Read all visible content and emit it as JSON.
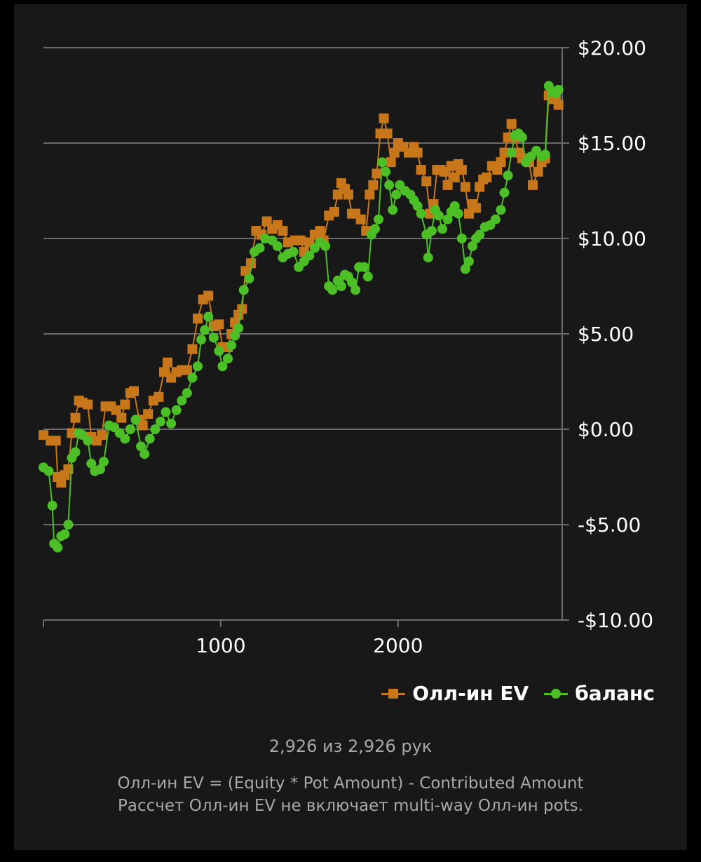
{
  "chart_data": {
    "type": "line",
    "xlim": [
      0,
      2926
    ],
    "ylim": [
      -10,
      20
    ],
    "y_ticks": [
      20,
      15,
      10,
      5,
      0,
      -5,
      -10
    ],
    "y_tick_labels": [
      "$20.00",
      "$15.00",
      "$10.00",
      "$5.00",
      "$0.00",
      "-$5.00",
      "-$10.00"
    ],
    "x_ticks": [
      0,
      1000,
      2000
    ],
    "x_tick_labels": [
      "",
      "1000",
      "2000"
    ],
    "grid": "horizontal",
    "legend_position": "bottom-right",
    "series": [
      {
        "name": "Олл-ин EV",
        "color": "#c8761a",
        "marker": "square",
        "points": [
          [
            0,
            -0.3
          ],
          [
            40,
            -0.6
          ],
          [
            70,
            -0.6
          ],
          [
            80,
            -2.5
          ],
          [
            100,
            -2.8
          ],
          [
            120,
            -2.4
          ],
          [
            140,
            -2.1
          ],
          [
            160,
            -0.2
          ],
          [
            180,
            0.6
          ],
          [
            200,
            1.5
          ],
          [
            220,
            1.4
          ],
          [
            250,
            1.3
          ],
          [
            270,
            -0.4
          ],
          [
            300,
            -0.6
          ],
          [
            330,
            -0.3
          ],
          [
            350,
            1.2
          ],
          [
            380,
            1.2
          ],
          [
            410,
            1.0
          ],
          [
            440,
            0.6
          ],
          [
            460,
            1.3
          ],
          [
            490,
            1.9
          ],
          [
            510,
            2.0
          ],
          [
            540,
            0.5
          ],
          [
            560,
            0.2
          ],
          [
            590,
            0.8
          ],
          [
            620,
            1.5
          ],
          [
            650,
            1.7
          ],
          [
            680,
            3.0
          ],
          [
            700,
            3.5
          ],
          [
            720,
            2.7
          ],
          [
            750,
            3.0
          ],
          [
            780,
            3.1
          ],
          [
            810,
            3.1
          ],
          [
            840,
            4.2
          ],
          [
            870,
            5.8
          ],
          [
            900,
            6.8
          ],
          [
            930,
            7.0
          ],
          [
            960,
            5.4
          ],
          [
            990,
            5.5
          ],
          [
            1010,
            4.3
          ],
          [
            1040,
            4.3
          ],
          [
            1060,
            5.0
          ],
          [
            1080,
            5.6
          ],
          [
            1100,
            6.0
          ],
          [
            1120,
            6.3
          ],
          [
            1140,
            8.3
          ],
          [
            1170,
            8.7
          ],
          [
            1200,
            10.4
          ],
          [
            1230,
            10.2
          ],
          [
            1260,
            10.9
          ],
          [
            1290,
            10.5
          ],
          [
            1320,
            10.7
          ],
          [
            1350,
            10.4
          ],
          [
            1380,
            9.8
          ],
          [
            1420,
            9.9
          ],
          [
            1450,
            9.9
          ],
          [
            1470,
            9.3
          ],
          [
            1500,
            9.8
          ],
          [
            1530,
            10.2
          ],
          [
            1560,
            10.4
          ],
          [
            1580,
            9.9
          ],
          [
            1610,
            11.2
          ],
          [
            1640,
            11.4
          ],
          [
            1660,
            12.3
          ],
          [
            1680,
            12.9
          ],
          [
            1700,
            12.6
          ],
          [
            1720,
            12.3
          ],
          [
            1740,
            11.3
          ],
          [
            1760,
            11.3
          ],
          [
            1790,
            11.0
          ],
          [
            1820,
            10.4
          ],
          [
            1840,
            12.3
          ],
          [
            1860,
            12.8
          ],
          [
            1880,
            13.4
          ],
          [
            1900,
            15.5
          ],
          [
            1920,
            16.3
          ],
          [
            1940,
            15.5
          ],
          [
            1960,
            14.0
          ],
          [
            1980,
            14.5
          ],
          [
            2000,
            15.0
          ],
          [
            2030,
            14.8
          ],
          [
            2060,
            14.5
          ],
          [
            2090,
            14.8
          ],
          [
            2110,
            14.5
          ],
          [
            2130,
            13.6
          ],
          [
            2160,
            13.0
          ],
          [
            2180,
            11.3
          ],
          [
            2200,
            11.8
          ],
          [
            2220,
            13.6
          ],
          [
            2240,
            13.6
          ],
          [
            2260,
            13.5
          ],
          [
            2280,
            12.8
          ],
          [
            2300,
            13.8
          ],
          [
            2320,
            13.2
          ],
          [
            2340,
            13.9
          ],
          [
            2360,
            13.6
          ],
          [
            2380,
            12.7
          ],
          [
            2400,
            11.3
          ],
          [
            2420,
            11.8
          ],
          [
            2440,
            11.6
          ],
          [
            2460,
            12.7
          ],
          [
            2480,
            13.1
          ],
          [
            2500,
            13.2
          ],
          [
            2530,
            13.8
          ],
          [
            2560,
            13.6
          ],
          [
            2580,
            14.0
          ],
          [
            2600,
            14.5
          ],
          [
            2620,
            15.3
          ],
          [
            2640,
            16.0
          ],
          [
            2660,
            15.3
          ],
          [
            2680,
            14.5
          ],
          [
            2700,
            14.2
          ],
          [
            2720,
            14.2
          ],
          [
            2740,
            14.0
          ],
          [
            2760,
            12.8
          ],
          [
            2790,
            13.5
          ],
          [
            2810,
            14.0
          ],
          [
            2830,
            14.2
          ],
          [
            2850,
            17.5
          ],
          [
            2870,
            17.3
          ],
          [
            2890,
            17.5
          ],
          [
            2905,
            17.0
          ]
        ]
      },
      {
        "name": "баланс",
        "color": "#4cbf26",
        "marker": "circle",
        "points": [
          [
            0,
            -2.0
          ],
          [
            30,
            -2.2
          ],
          [
            50,
            -4.0
          ],
          [
            60,
            -6.0
          ],
          [
            80,
            -6.2
          ],
          [
            100,
            -5.6
          ],
          [
            120,
            -5.5
          ],
          [
            140,
            -5.0
          ],
          [
            160,
            -1.5
          ],
          [
            180,
            -1.2
          ],
          [
            200,
            -0.2
          ],
          [
            220,
            -0.3
          ],
          [
            250,
            -0.6
          ],
          [
            270,
            -1.8
          ],
          [
            290,
            -2.2
          ],
          [
            320,
            -2.1
          ],
          [
            340,
            -1.7
          ],
          [
            370,
            0.2
          ],
          [
            400,
            0.1
          ],
          [
            430,
            -0.2
          ],
          [
            460,
            -0.5
          ],
          [
            490,
            0.0
          ],
          [
            520,
            0.5
          ],
          [
            550,
            -0.9
          ],
          [
            570,
            -1.3
          ],
          [
            600,
            -0.5
          ],
          [
            630,
            0.0
          ],
          [
            660,
            0.4
          ],
          [
            690,
            0.9
          ],
          [
            720,
            0.3
          ],
          [
            750,
            1.0
          ],
          [
            780,
            1.5
          ],
          [
            810,
            1.9
          ],
          [
            840,
            2.7
          ],
          [
            870,
            3.3
          ],
          [
            890,
            4.7
          ],
          [
            910,
            5.2
          ],
          [
            930,
            5.9
          ],
          [
            960,
            4.8
          ],
          [
            990,
            4.1
          ],
          [
            1010,
            3.3
          ],
          [
            1040,
            3.7
          ],
          [
            1060,
            4.4
          ],
          [
            1080,
            4.9
          ],
          [
            1100,
            5.3
          ],
          [
            1130,
            7.3
          ],
          [
            1160,
            7.9
          ],
          [
            1190,
            9.3
          ],
          [
            1220,
            9.5
          ],
          [
            1250,
            10.0
          ],
          [
            1290,
            9.9
          ],
          [
            1320,
            9.6
          ],
          [
            1350,
            9.0
          ],
          [
            1380,
            9.2
          ],
          [
            1410,
            9.3
          ],
          [
            1440,
            8.5
          ],
          [
            1470,
            8.8
          ],
          [
            1500,
            9.1
          ],
          [
            1530,
            9.5
          ],
          [
            1560,
            9.8
          ],
          [
            1590,
            9.6
          ],
          [
            1610,
            7.5
          ],
          [
            1630,
            7.3
          ],
          [
            1660,
            7.8
          ],
          [
            1680,
            7.5
          ],
          [
            1700,
            8.1
          ],
          [
            1720,
            8.0
          ],
          [
            1740,
            7.7
          ],
          [
            1760,
            7.3
          ],
          [
            1780,
            8.5
          ],
          [
            1810,
            8.5
          ],
          [
            1830,
            8.0
          ],
          [
            1850,
            10.2
          ],
          [
            1870,
            10.5
          ],
          [
            1890,
            11.0
          ],
          [
            1910,
            14.0
          ],
          [
            1930,
            13.5
          ],
          [
            1950,
            12.8
          ],
          [
            1970,
            11.5
          ],
          [
            1990,
            12.3
          ],
          [
            2010,
            12.8
          ],
          [
            2040,
            12.5
          ],
          [
            2070,
            12.3
          ],
          [
            2090,
            12.0
          ],
          [
            2110,
            11.7
          ],
          [
            2130,
            11.3
          ],
          [
            2160,
            10.2
          ],
          [
            2170,
            9.0
          ],
          [
            2190,
            10.4
          ],
          [
            2210,
            11.5
          ],
          [
            2230,
            11.2
          ],
          [
            2250,
            10.5
          ],
          [
            2280,
            11.0
          ],
          [
            2300,
            11.4
          ],
          [
            2320,
            11.7
          ],
          [
            2340,
            11.3
          ],
          [
            2360,
            10.0
          ],
          [
            2380,
            8.4
          ],
          [
            2400,
            8.8
          ],
          [
            2420,
            9.6
          ],
          [
            2440,
            10.0
          ],
          [
            2460,
            10.2
          ],
          [
            2490,
            10.6
          ],
          [
            2520,
            10.7
          ],
          [
            2550,
            11.0
          ],
          [
            2580,
            11.5
          ],
          [
            2600,
            12.4
          ],
          [
            2620,
            13.3
          ],
          [
            2640,
            14.5
          ],
          [
            2660,
            15.4
          ],
          [
            2680,
            15.5
          ],
          [
            2700,
            15.3
          ],
          [
            2720,
            14.0
          ],
          [
            2750,
            14.3
          ],
          [
            2780,
            14.6
          ],
          [
            2810,
            14.3
          ],
          [
            2830,
            14.4
          ],
          [
            2850,
            18.0
          ],
          [
            2870,
            17.7
          ],
          [
            2890,
            17.6
          ],
          [
            2905,
            17.8
          ]
        ]
      }
    ]
  },
  "legend": {
    "ev_label": "Олл-ин EV",
    "balance_label": "баланс"
  },
  "footer": {
    "hands": "2,926 из 2,926 рук",
    "note_line1": "Олл-ин EV = (Equity * Pot Amount) - Contributed Amount",
    "note_line2": "Рассчет Олл-ин EV не включает multi-way Олл-ин pots."
  },
  "colors": {
    "background": "#181818",
    "grid": "#6a6a6a",
    "ev": "#c8761a",
    "balance": "#4cbf26"
  }
}
